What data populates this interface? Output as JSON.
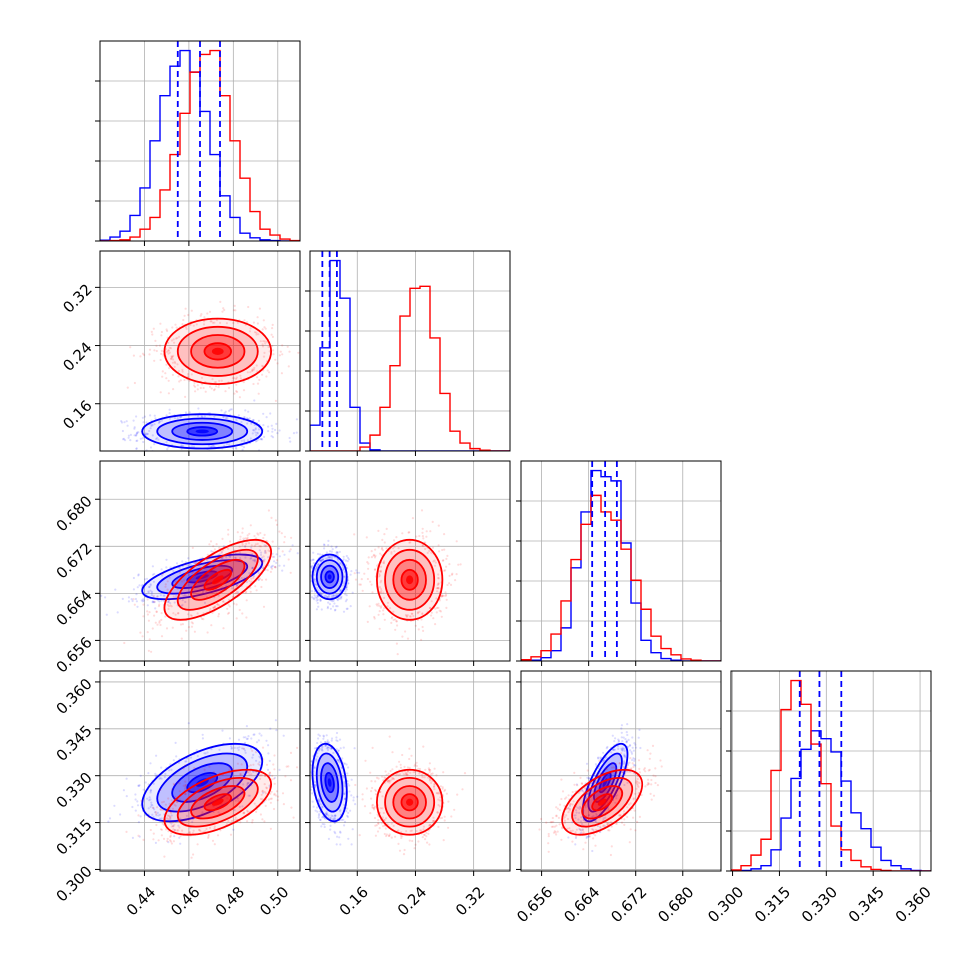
{
  "chart_data": {
    "type": "corner",
    "n_params": 4,
    "grid": true,
    "series": [
      {
        "color": "#0000ff"
      },
      {
        "color": "#ff0000"
      }
    ],
    "axes": [
      {
        "range": [
          0.42,
          0.51
        ],
        "ticks": [
          0.44,
          0.46,
          0.48,
          0.5
        ],
        "tick_labels": [
          "0.44",
          "0.46",
          "0.48",
          "0.50"
        ]
      },
      {
        "range": [
          0.095,
          0.37
        ],
        "ticks": [
          0.16,
          0.24,
          0.32
        ],
        "tick_labels": [
          "0.16",
          "0.24",
          "0.32"
        ]
      },
      {
        "range": [
          0.6525,
          0.6865
        ],
        "ticks": [
          0.656,
          0.664,
          0.672,
          0.68
        ],
        "tick_labels": [
          "0.656",
          "0.664",
          "0.672",
          "0.680"
        ]
      },
      {
        "range": [
          0.2995,
          0.3635
        ],
        "ticks": [
          0.3,
          0.315,
          0.33,
          0.345,
          0.36
        ],
        "tick_labels": [
          "0.300",
          "0.315",
          "0.330",
          "0.345",
          "0.360"
        ]
      }
    ],
    "quantile_lines": [
      [
        0.455,
        0.465,
        0.474
      ],
      [
        0.112,
        0.122,
        0.132
      ],
      [
        0.6646,
        0.6668,
        0.6688
      ],
      [
        0.3215,
        0.3278,
        0.3348
      ]
    ],
    "histograms": [
      {
        "edges": [
          0.42,
          0.4245,
          0.429,
          0.4335,
          0.438,
          0.4425,
          0.447,
          0.4515,
          0.456,
          0.4605,
          0.465,
          0.4695,
          0.474,
          0.4785,
          0.483,
          0.4875,
          0.492,
          0.4965,
          0.501,
          0.5055,
          0.51
        ],
        "counts": [
          [
            0.2,
            1.0,
            2.5,
            6.5,
            13.5,
            25.5,
            37.0,
            44.5,
            48.5,
            43.0,
            33.0,
            22.0,
            11.5,
            6.0,
            2.0,
            0.8,
            0.3,
            0.1,
            0.0,
            0.0
          ],
          [
            0.0,
            0.1,
            0.3,
            1.0,
            3.0,
            6.0,
            13.0,
            22.0,
            32.5,
            43.0,
            47.5,
            48.5,
            37.0,
            25.5,
            16.0,
            7.5,
            3.0,
            1.5,
            0.5,
            0.1
          ]
        ]
      },
      {
        "edges": [
          0.095,
          0.10875,
          0.1225,
          0.13625,
          0.15,
          0.16375,
          0.1775,
          0.19125,
          0.205,
          0.21875,
          0.2325,
          0.24625,
          0.26,
          0.27375,
          0.2875,
          0.30125,
          0.315,
          0.32875,
          0.3425,
          0.35625,
          0.37
        ],
        "counts": [
          [
            6.5,
            26.0,
            48.0,
            38.5,
            11.0,
            2.0,
            0.3,
            0.0,
            0.0,
            0.0,
            0.0,
            0.0,
            0.0,
            0.0,
            0.0,
            0.0,
            0.0,
            0.0,
            0.0,
            0.0
          ],
          [
            0.0,
            0.0,
            0.0,
            0.0,
            0.0,
            1.0,
            4.0,
            11.0,
            21.5,
            34.0,
            41.0,
            41.5,
            28.5,
            14.5,
            5.0,
            2.0,
            0.6,
            0.2,
            0.0,
            0.0
          ]
        ]
      },
      {
        "edges": [
          0.6525,
          0.6542,
          0.6559,
          0.6576,
          0.6593,
          0.661,
          0.6627,
          0.6644,
          0.6661,
          0.6678,
          0.6695,
          0.6712,
          0.6729,
          0.6746,
          0.6763,
          0.678,
          0.6797,
          0.6814,
          0.6831,
          0.6848,
          0.6865
        ],
        "counts": [
          [
            0.0,
            0.2,
            0.8,
            2.5,
            8.0,
            22.5,
            36.0,
            46.0,
            44.5,
            43.5,
            28.5,
            14.0,
            5.0,
            2.0,
            0.6,
            0.2,
            0.0,
            0.0,
            0.0,
            0.0
          ],
          [
            0.3,
            1.0,
            2.5,
            6.5,
            14.5,
            24.5,
            33.0,
            40.0,
            36.0,
            34.0,
            27.0,
            19.5,
            12.5,
            6.0,
            3.0,
            1.5,
            0.5,
            0.2,
            0.0,
            0.0
          ]
        ]
      },
      {
        "edges": [
          0.2995,
          0.3027,
          0.3059,
          0.3091,
          0.3123,
          0.3155,
          0.3187,
          0.3219,
          0.3251,
          0.3283,
          0.3315,
          0.3347,
          0.3379,
          0.3411,
          0.3443,
          0.3475,
          0.3507,
          0.3539,
          0.3571,
          0.3603,
          0.3635
        ],
        "counts": [
          [
            0.0,
            0.1,
            0.4,
            1.0,
            4.0,
            10.0,
            17.5,
            23.0,
            26.5,
            25.0,
            22.5,
            17.0,
            11.0,
            8.0,
            4.5,
            2.0,
            1.0,
            0.4,
            0.1,
            0.0
          ],
          [
            0.2,
            1.0,
            3.0,
            6.0,
            19.0,
            30.5,
            36.0,
            31.5,
            24.0,
            16.5,
            8.5,
            4.0,
            2.0,
            0.8,
            0.3,
            0.1,
            0.0,
            0.0,
            0.0,
            0.0
          ]
        ]
      }
    ],
    "pairs": [
      {
        "row": 1,
        "col": 0,
        "series": [
          {
            "mean": [
              0.466,
              0.122
            ],
            "sd": [
              0.0135,
              0.0118
            ],
            "rho": 0.0
          },
          {
            "mean": [
              0.473,
              0.232
            ],
            "sd": [
              0.012,
              0.0225
            ],
            "rho": 0.0
          }
        ]
      },
      {
        "row": 2,
        "col": 0,
        "series": [
          {
            "mean": [
              0.466,
              0.6668
            ],
            "sd": [
              0.0135,
              0.0019
            ],
            "rho": 0.62
          },
          {
            "mean": [
              0.473,
              0.6663
            ],
            "sd": [
              0.012,
              0.0034
            ],
            "rho": 0.7
          }
        ]
      },
      {
        "row": 2,
        "col": 1,
        "series": [
          {
            "mean": [
              0.122,
              0.6668
            ],
            "sd": [
              0.0118,
              0.0019
            ],
            "rho": 0.0
          },
          {
            "mean": [
              0.232,
              0.6663
            ],
            "sd": [
              0.0225,
              0.0034
            ],
            "rho": 0.0
          }
        ]
      },
      {
        "row": 3,
        "col": 0,
        "series": [
          {
            "mean": [
              0.466,
              0.3278
            ],
            "sd": [
              0.0135,
              0.0062
            ],
            "rho": 0.55
          },
          {
            "mean": [
              0.473,
              0.3215
            ],
            "sd": [
              0.012,
              0.0052
            ],
            "rho": 0.55
          }
        ]
      },
      {
        "row": 3,
        "col": 1,
        "series": [
          {
            "mean": [
              0.122,
              0.3278
            ],
            "sd": [
              0.0118,
              0.0062
            ],
            "rho": -0.25
          },
          {
            "mean": [
              0.232,
              0.3215
            ],
            "sd": [
              0.0225,
              0.0052
            ],
            "rho": 0.0
          }
        ]
      },
      {
        "row": 3,
        "col": 2,
        "series": [
          {
            "mean": [
              0.6668,
              0.3278
            ],
            "sd": [
              0.0019,
              0.0062
            ],
            "rho": 0.72
          },
          {
            "mean": [
              0.6663,
              0.3215
            ],
            "sd": [
              0.0034,
              0.0052
            ],
            "rho": 0.55
          }
        ]
      }
    ]
  }
}
